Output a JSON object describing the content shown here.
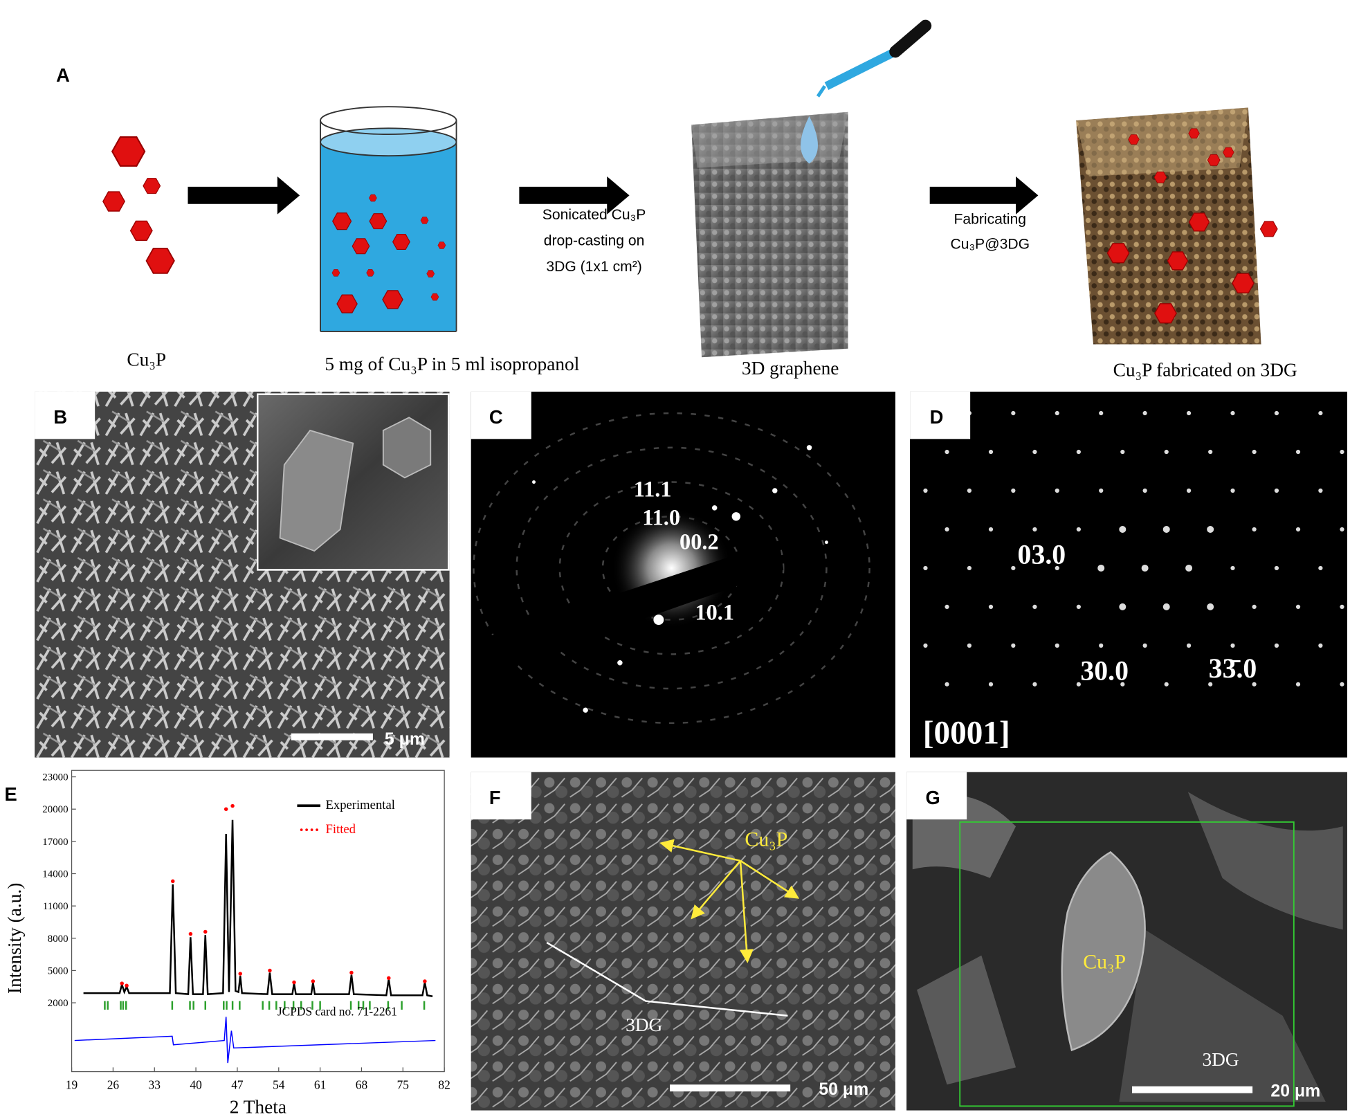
{
  "figure": {
    "a": {
      "label": "A",
      "steps": [
        [
          "Sonicated Cu₃P",
          "drop-casting on",
          "3DG (1x1 cm²)"
        ],
        [
          "Fabricating",
          "Cu₃P@3DG"
        ]
      ],
      "captions": [
        "Cu₃P",
        "5 mg of Cu₃P in 5 ml isopropanol",
        "3D graphene",
        "Cu₃P fabricated on 3DG"
      ]
    },
    "b": {
      "label": "B",
      "scale_bar": "5 μm"
    },
    "c": {
      "label": "C",
      "indices": [
        "11.1",
        "11.0",
        "00.2",
        "10.1"
      ]
    },
    "d": {
      "label": "D",
      "indices": [
        "03.0",
        "30.0",
        "33̄.0"
      ],
      "zone_axis": "[0001]"
    },
    "e": {
      "label": "E"
    },
    "f": {
      "label": "F",
      "annotations": [
        "Cu₃P",
        "3DG"
      ],
      "scale_bar": "50 μm"
    },
    "g": {
      "label": "G",
      "annotations": [
        "Cu₃P",
        "3DG"
      ],
      "scale_bar": "20 μm"
    }
  },
  "chart_data": {
    "type": "line",
    "xlabel": "2 Theta",
    "ylabel": "Intensity (a.u.)",
    "xlim": [
      19,
      82
    ],
    "ylim": [
      -4400,
      23600
    ],
    "xticks": [
      19,
      26,
      33,
      40,
      47,
      54,
      61,
      68,
      75,
      82
    ],
    "yticks": [
      2000,
      5000,
      8000,
      11000,
      14000,
      17000,
      20000,
      23000
    ],
    "series": [
      {
        "name": "Experimental",
        "color": "#000000",
        "x": [
          21,
          27.1,
          27.5,
          27.9,
          28.3,
          28.7,
          35.6,
          36.1,
          36.6,
          38.7,
          39.1,
          39.5,
          41.2,
          41.6,
          42.0,
          44.6,
          45.1,
          45.6,
          46.2,
          46.7,
          47.2,
          47.5,
          47.8,
          52.1,
          52.5,
          52.9,
          56.3,
          56.6,
          56.9,
          59.5,
          59.8,
          60.1,
          65.9,
          66.3,
          66.7,
          72.2,
          72.6,
          73.0,
          78.3,
          78.7,
          79.1,
          80
        ],
        "values": [
          2900,
          2900,
          3700,
          3000,
          3500,
          2900,
          2900,
          13000,
          2900,
          2800,
          8100,
          2800,
          2800,
          8300,
          2800,
          2900,
          17700,
          3000,
          19000,
          3100,
          3000,
          4500,
          2900,
          2800,
          4800,
          2800,
          2800,
          3800,
          2800,
          2800,
          3900,
          2800,
          2800,
          4600,
          2800,
          2700,
          4200,
          2700,
          2700,
          3900,
          2700,
          2600
        ]
      },
      {
        "name": "Fitted",
        "color": "#ff0000",
        "style": "dotted",
        "x": [
          27.5,
          28.3,
          36.1,
          39.1,
          41.6,
          45.1,
          46.2,
          47.5,
          52.5,
          56.6,
          59.8,
          66.3,
          72.6,
          78.7
        ],
        "values": [
          3800,
          3600,
          13300,
          8400,
          8600,
          20000,
          20300,
          4700,
          5000,
          3900,
          4000,
          4800,
          4300,
          4000
        ]
      },
      {
        "color": "#0000ff",
        "x": [
          19.5,
          36.0,
          36.2,
          44.8,
          45.1,
          45.4,
          46.0,
          46.4,
          80.5
        ],
        "values": [
          -1500,
          -1100,
          -1900,
          -1500,
          700,
          -3600,
          -600,
          -2200,
          -1500
        ]
      }
    ],
    "markers": {
      "color": "#2ca02c",
      "x": [
        24.6,
        25.1,
        27.3,
        27.7,
        28.2,
        36.0,
        39.0,
        39.6,
        41.6,
        44.7,
        45.2,
        46.2,
        47.4,
        51.3,
        52.4,
        53.6,
        55.0,
        56.5,
        57.8,
        59.7,
        61.0,
        66.2,
        67.5,
        68.3,
        69.4,
        72.5,
        74.8,
        78.6
      ]
    },
    "annotation": "JCPDS card no. 71-2261"
  }
}
